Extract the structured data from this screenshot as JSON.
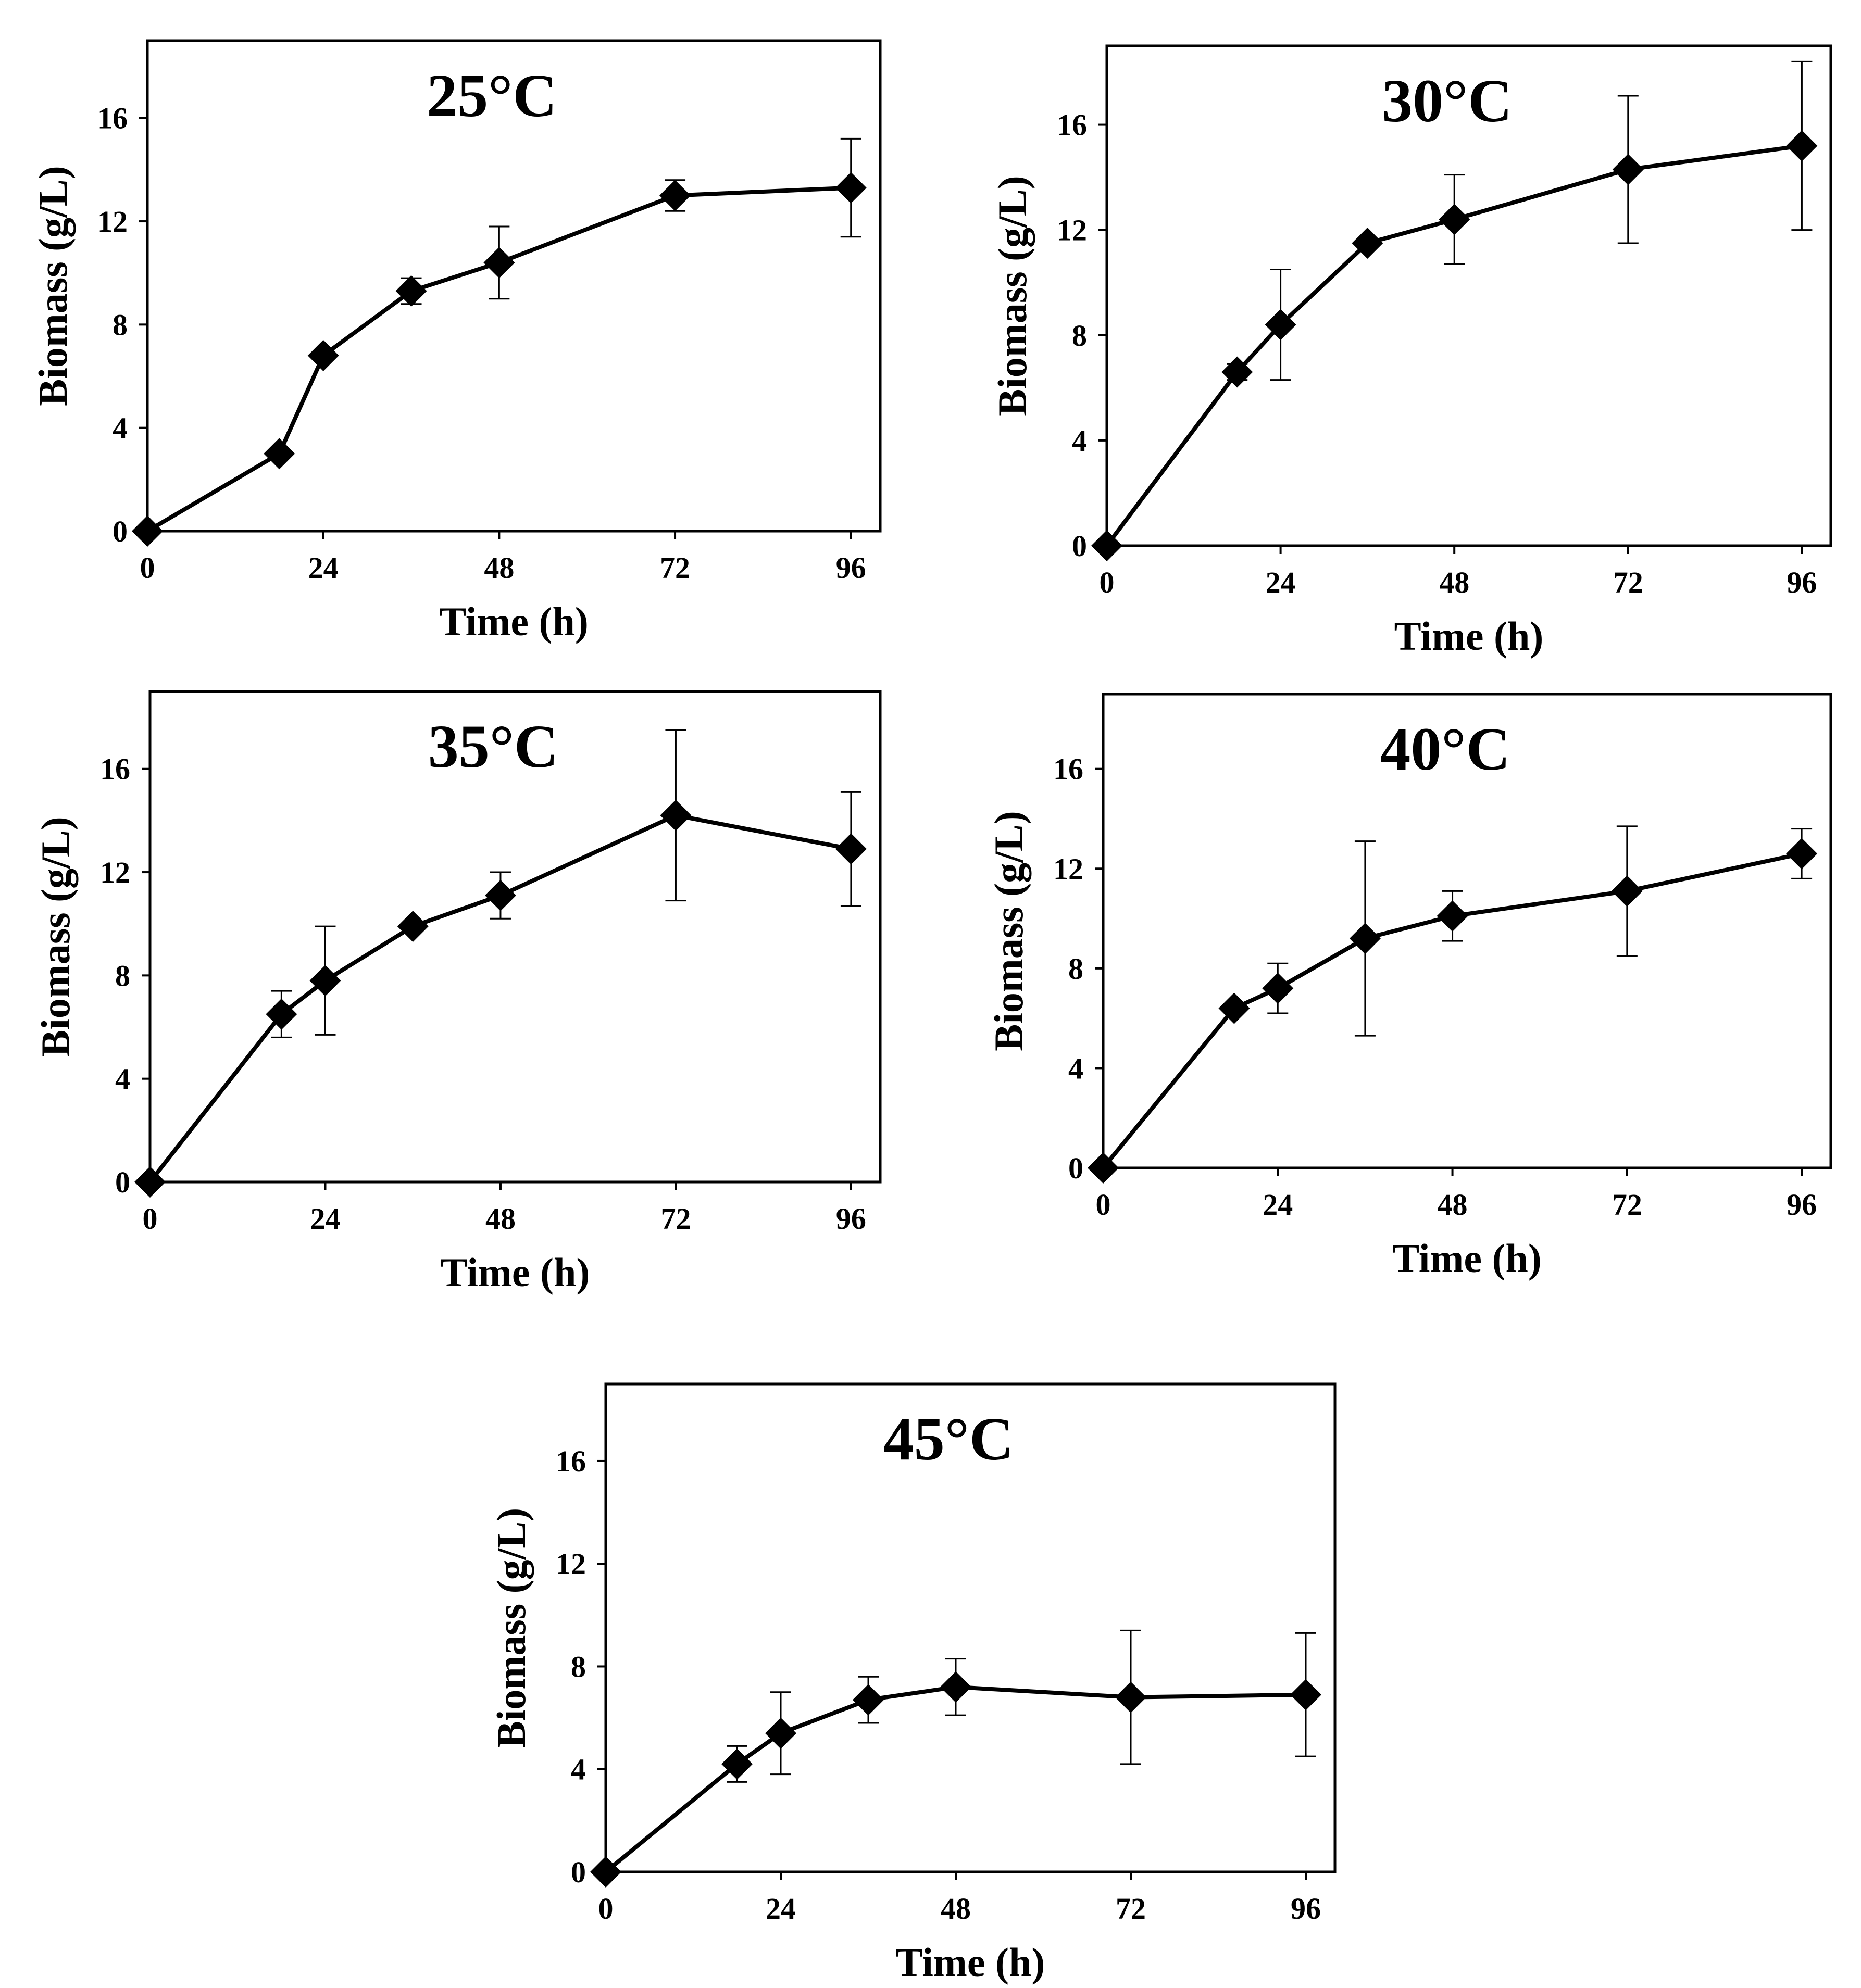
{
  "chart_data": [
    {
      "type": "line",
      "title": "25°C",
      "xlabel": "Time (h)",
      "ylabel": "Biomass (g/L)",
      "xlim": [
        0,
        100
      ],
      "ylim": [
        0,
        19
      ],
      "xticks": [
        0,
        24,
        48,
        72,
        96
      ],
      "yticks": [
        0,
        4,
        8,
        12,
        16
      ],
      "x": [
        0,
        18,
        24,
        36,
        48,
        72,
        96
      ],
      "y": [
        0,
        3.0,
        6.8,
        9.3,
        10.4,
        13.0,
        13.3
      ],
      "err": [
        0,
        0,
        0,
        0.5,
        1.4,
        0.6,
        1.9
      ]
    },
    {
      "type": "line",
      "title": "30°C",
      "xlabel": "Time (h)",
      "ylabel": "Biomass (g/L)",
      "xlim": [
        0,
        100
      ],
      "ylim": [
        0,
        19
      ],
      "xticks": [
        0,
        24,
        48,
        72,
        96
      ],
      "yticks": [
        0,
        4,
        8,
        12,
        16
      ],
      "x": [
        0,
        18,
        24,
        36,
        48,
        72,
        96
      ],
      "y": [
        0,
        6.6,
        8.4,
        11.5,
        12.4,
        14.3,
        15.2
      ],
      "err": [
        0,
        0.3,
        2.1,
        0,
        1.7,
        2.8,
        3.2
      ]
    },
    {
      "type": "line",
      "title": "35°C",
      "xlabel": "Time (h)",
      "ylabel": "Biomass (g/L)",
      "xlim": [
        0,
        100
      ],
      "ylim": [
        0,
        19
      ],
      "xticks": [
        0,
        24,
        48,
        72,
        96
      ],
      "yticks": [
        0,
        4,
        8,
        12,
        16
      ],
      "x": [
        0,
        18,
        24,
        36,
        48,
        72,
        96
      ],
      "y": [
        0,
        6.5,
        7.8,
        9.9,
        11.1,
        14.2,
        12.9
      ],
      "err": [
        0,
        0.9,
        2.1,
        0,
        0.9,
        3.3,
        2.2
      ]
    },
    {
      "type": "line",
      "title": "40°C",
      "xlabel": "Time (h)",
      "ylabel": "Biomass (g/L)",
      "xlim": [
        0,
        100
      ],
      "ylim": [
        0,
        19
      ],
      "xticks": [
        0,
        24,
        48,
        72,
        96
      ],
      "yticks": [
        0,
        4,
        8,
        12,
        16
      ],
      "x": [
        0,
        18,
        24,
        36,
        48,
        72,
        96
      ],
      "y": [
        0,
        6.4,
        7.2,
        9.2,
        10.1,
        11.1,
        12.6
      ],
      "err": [
        0,
        0,
        1.0,
        3.9,
        1.0,
        2.6,
        1.0
      ]
    },
    {
      "type": "line",
      "title": "45°C",
      "xlabel": "Time (h)",
      "ylabel": "Biomass (g/L)",
      "xlim": [
        0,
        100
      ],
      "ylim": [
        0,
        19
      ],
      "xticks": [
        0,
        24,
        48,
        72,
        96
      ],
      "yticks": [
        0,
        4,
        8,
        12,
        16
      ],
      "x": [
        0,
        18,
        24,
        36,
        48,
        72,
        96
      ],
      "y": [
        0,
        4.2,
        5.4,
        6.7,
        7.2,
        6.8,
        6.9
      ],
      "err": [
        0,
        0.7,
        1.6,
        0.9,
        1.1,
        2.6,
        2.4
      ]
    }
  ]
}
